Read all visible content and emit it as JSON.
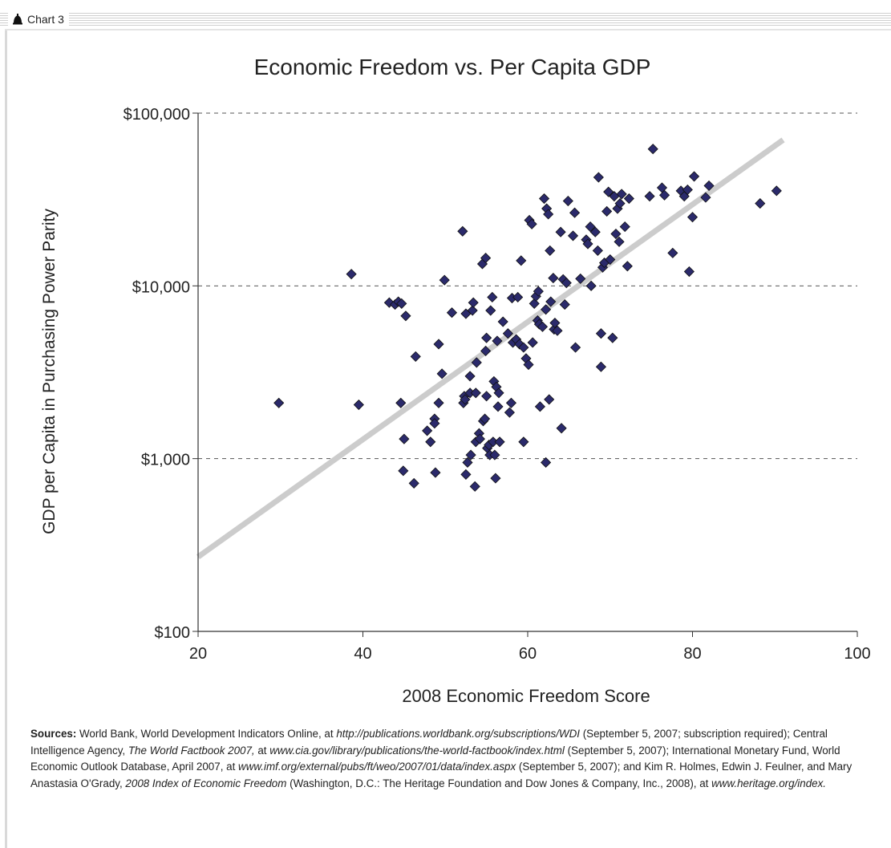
{
  "header": {
    "label": "Chart 3"
  },
  "chart_data": {
    "type": "scatter",
    "title": "Economic Freedom vs. Per Capita GDP",
    "xlabel": "2008 Economic Freedom Score",
    "ylabel": "GDP per Capita in Purchasing Power Parity",
    "xlim": [
      20,
      100
    ],
    "ylim": [
      100,
      100000
    ],
    "yscale": "log",
    "x_ticks": [
      "20",
      "40",
      "60",
      "80",
      "100"
    ],
    "y_ticks": [
      "$100",
      "$1,000",
      "$10,000",
      "$100,000"
    ],
    "grid": "horizontal dashed",
    "marker_color": "#2b2a6b",
    "trendline": {
      "color": "#cccccc",
      "x": [
        20,
        91
      ],
      "y": [
        270,
        70000
      ]
    },
    "points": [
      [
        29.8,
        2100
      ],
      [
        38.6,
        11700
      ],
      [
        39.5,
        2050
      ],
      [
        43.2,
        8000
      ],
      [
        43.9,
        7800
      ],
      [
        44.3,
        8100
      ],
      [
        44.7,
        7900
      ],
      [
        45.2,
        6700
      ],
      [
        44.6,
        2100
      ],
      [
        45.0,
        1300
      ],
      [
        44.9,
        850
      ],
      [
        46.2,
        720
      ],
      [
        46.4,
        3900
      ],
      [
        47.8,
        1450
      ],
      [
        48.2,
        1250
      ],
      [
        48.7,
        1700
      ],
      [
        48.7,
        1600
      ],
      [
        48.8,
        830
      ],
      [
        49.2,
        2100
      ],
      [
        49.2,
        4600
      ],
      [
        49.6,
        3100
      ],
      [
        49.9,
        10800
      ],
      [
        50.8,
        7000
      ],
      [
        52.1,
        20700
      ],
      [
        52.2,
        2100
      ],
      [
        52.3,
        2300
      ],
      [
        52.4,
        2200
      ],
      [
        52.5,
        6900
      ],
      [
        52.5,
        810
      ],
      [
        52.7,
        950
      ],
      [
        53.0,
        2400
      ],
      [
        53.0,
        3000
      ],
      [
        53.1,
        1050
      ],
      [
        53.3,
        7200
      ],
      [
        53.4,
        8000
      ],
      [
        53.6,
        690
      ],
      [
        53.7,
        1250
      ],
      [
        53.7,
        2400
      ],
      [
        53.8,
        3600
      ],
      [
        54.1,
        1400
      ],
      [
        54.2,
        1300
      ],
      [
        54.5,
        13400
      ],
      [
        54.6,
        1650
      ],
      [
        54.8,
        1700
      ],
      [
        54.9,
        4200
      ],
      [
        54.9,
        14500
      ],
      [
        55.0,
        2300
      ],
      [
        55.0,
        5000
      ],
      [
        55.1,
        1150
      ],
      [
        55.3,
        1200
      ],
      [
        55.4,
        1050
      ],
      [
        55.5,
        7200
      ],
      [
        55.7,
        8600
      ],
      [
        55.8,
        1250
      ],
      [
        55.9,
        2800
      ],
      [
        56.0,
        1050
      ],
      [
        56.1,
        770
      ],
      [
        56.2,
        2600
      ],
      [
        56.3,
        4800
      ],
      [
        56.4,
        2000
      ],
      [
        56.5,
        2400
      ],
      [
        56.6,
        1250
      ],
      [
        57.0,
        6200
      ],
      [
        57.6,
        5300
      ],
      [
        57.8,
        1850
      ],
      [
        58.0,
        2100
      ],
      [
        58.1,
        8500
      ],
      [
        58.2,
        4700
      ],
      [
        58.6,
        4900
      ],
      [
        58.8,
        8600
      ],
      [
        59.0,
        4600
      ],
      [
        59.2,
        14000
      ],
      [
        59.5,
        4400
      ],
      [
        59.5,
        1250
      ],
      [
        59.8,
        3800
      ],
      [
        60.1,
        3500
      ],
      [
        60.2,
        24000
      ],
      [
        60.5,
        22800
      ],
      [
        60.6,
        4700
      ],
      [
        60.8,
        7900
      ],
      [
        61.0,
        8700
      ],
      [
        61.2,
        6300
      ],
      [
        61.3,
        9300
      ],
      [
        61.4,
        6000
      ],
      [
        61.5,
        2000
      ],
      [
        61.8,
        5800
      ],
      [
        62.0,
        32000
      ],
      [
        62.2,
        950
      ],
      [
        62.2,
        7300
      ],
      [
        62.3,
        28000
      ],
      [
        62.5,
        26000
      ],
      [
        62.6,
        2200
      ],
      [
        62.7,
        16000
      ],
      [
        62.8,
        8100
      ],
      [
        63.1,
        11100
      ],
      [
        63.2,
        5600
      ],
      [
        63.3,
        6100
      ],
      [
        63.6,
        5500
      ],
      [
        64.0,
        20500
      ],
      [
        64.1,
        1500
      ],
      [
        64.3,
        10900
      ],
      [
        64.5,
        7800
      ],
      [
        64.7,
        10400
      ],
      [
        64.9,
        31000
      ],
      [
        65.5,
        19500
      ],
      [
        65.7,
        26500
      ],
      [
        65.8,
        4400
      ],
      [
        66.4,
        11000
      ],
      [
        67.1,
        18500
      ],
      [
        67.3,
        17500
      ],
      [
        67.6,
        22000
      ],
      [
        67.7,
        10000
      ],
      [
        68.2,
        20500
      ],
      [
        68.5,
        16000
      ],
      [
        68.6,
        42500
      ],
      [
        68.9,
        5300
      ],
      [
        68.9,
        3400
      ],
      [
        69.1,
        12800
      ],
      [
        69.3,
        13600
      ],
      [
        69.6,
        27000
      ],
      [
        69.8,
        35000
      ],
      [
        70.0,
        14200
      ],
      [
        70.3,
        5000
      ],
      [
        70.5,
        33000
      ],
      [
        70.7,
        20000
      ],
      [
        70.9,
        28000
      ],
      [
        71.1,
        18000
      ],
      [
        71.2,
        30000
      ],
      [
        71.4,
        34000
      ],
      [
        71.8,
        22000
      ],
      [
        72.1,
        13000
      ],
      [
        72.3,
        32000
      ],
      [
        74.8,
        33000
      ],
      [
        75.2,
        62000
      ],
      [
        76.3,
        37000
      ],
      [
        76.6,
        33500
      ],
      [
        77.6,
        15500
      ],
      [
        78.6,
        35500
      ],
      [
        79.0,
        33000
      ],
      [
        79.4,
        36000
      ],
      [
        79.6,
        12100
      ],
      [
        80.0,
        25000
      ],
      [
        80.2,
        43000
      ],
      [
        81.6,
        32500
      ],
      [
        82.0,
        38000
      ],
      [
        88.2,
        30000
      ],
      [
        90.2,
        35500
      ]
    ]
  },
  "sources": {
    "label": "Sources:",
    "p1": " World Bank, World Development Indicators Online, at ",
    "url1": "http://publications.worldbank.org/subscriptions/WDI",
    "p2": " (September 5, 2007; subscription required); Central Intelligence Agency, ",
    "t1": "The World Factbook 2007,",
    "p3": " at ",
    "url2": "www.cia.gov/library/publications/the-world-factbook/index.html",
    "p4": " (September 5, 2007); International Monetary Fund, World Economic Outlook Database, April 2007, at ",
    "url3": "www.imf.org/external/pubs/ft/weo/2007/01/data/index.aspx",
    "p5": " (September 5, 2007); and Kim R. Holmes, Edwin J. Feulner, and Mary Anastasia O'Grady, ",
    "t2": "2008 Index of Economic Freedom",
    "p6": " (Washington, D.C.: The Heritage Foundation and Dow Jones & Company, Inc., 2008), at ",
    "url4": "www.heritage.org/index."
  }
}
